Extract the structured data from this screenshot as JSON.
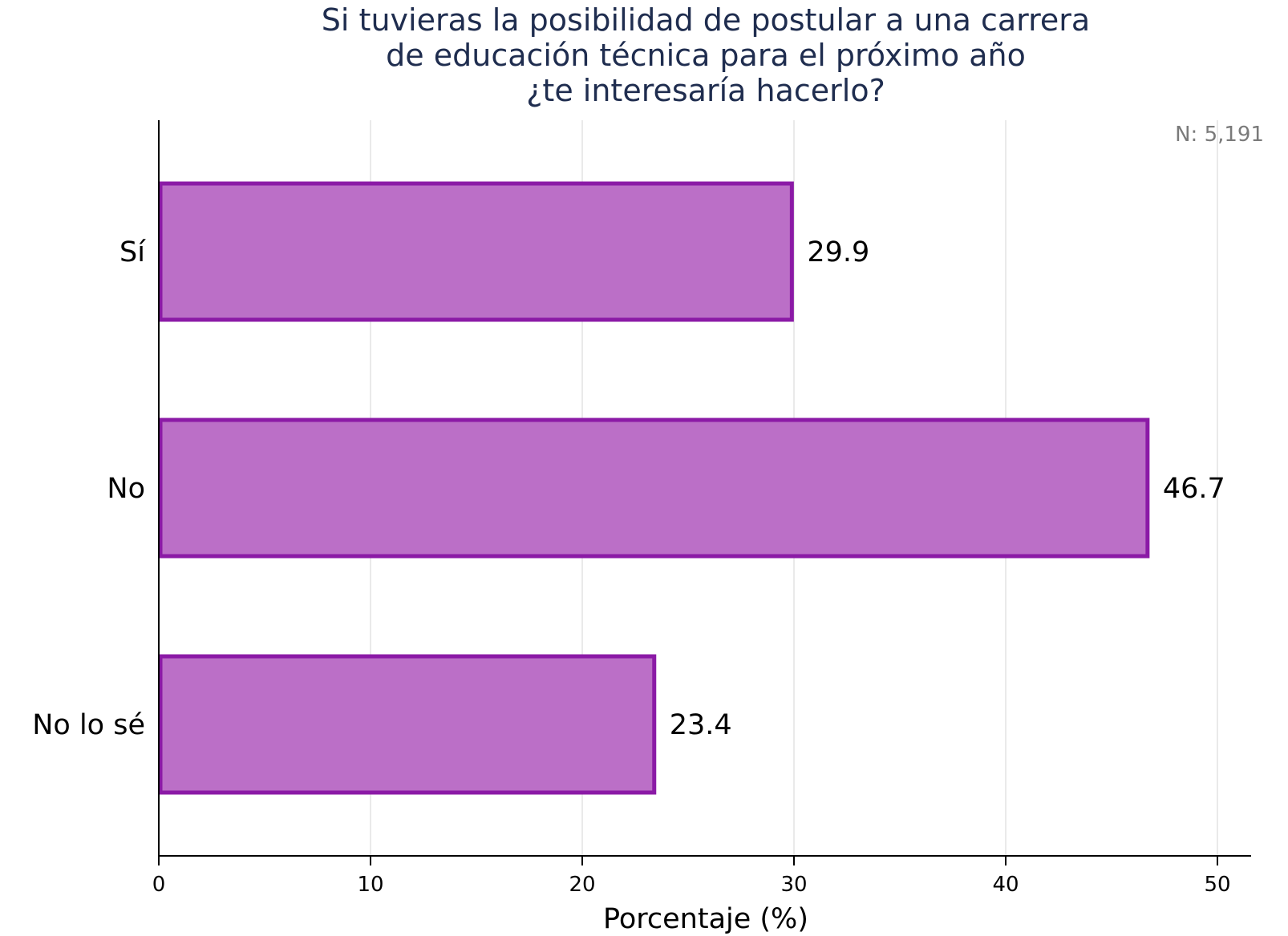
{
  "chart_data": {
    "type": "bar",
    "orientation": "horizontal",
    "title_lines": [
      "Si tuvieras la posibilidad de postular a una carrera",
      "de educación técnica para el próximo año",
      "¿te interesaría hacerlo?"
    ],
    "categories": [
      "Sí",
      "No",
      "No lo sé"
    ],
    "values": [
      29.9,
      46.7,
      23.4
    ],
    "value_labels": [
      "29.9",
      "46.7",
      "23.4"
    ],
    "xlabel": "Porcentaje (%)",
    "xlim": [
      0,
      51.5
    ],
    "xticks": [
      0,
      10,
      20,
      30,
      40,
      50
    ],
    "xtick_labels": [
      "0",
      "10",
      "20",
      "30",
      "40",
      "50"
    ],
    "grid": "vertical",
    "note": "N:  5,191",
    "colors": {
      "bar_fill": "#bb6fc7",
      "bar_edge": "#8b1aa6",
      "grid": "#e3e3e3",
      "axis": "#000000",
      "title": "#1f2d4f",
      "note": "#7a7a7a"
    }
  }
}
